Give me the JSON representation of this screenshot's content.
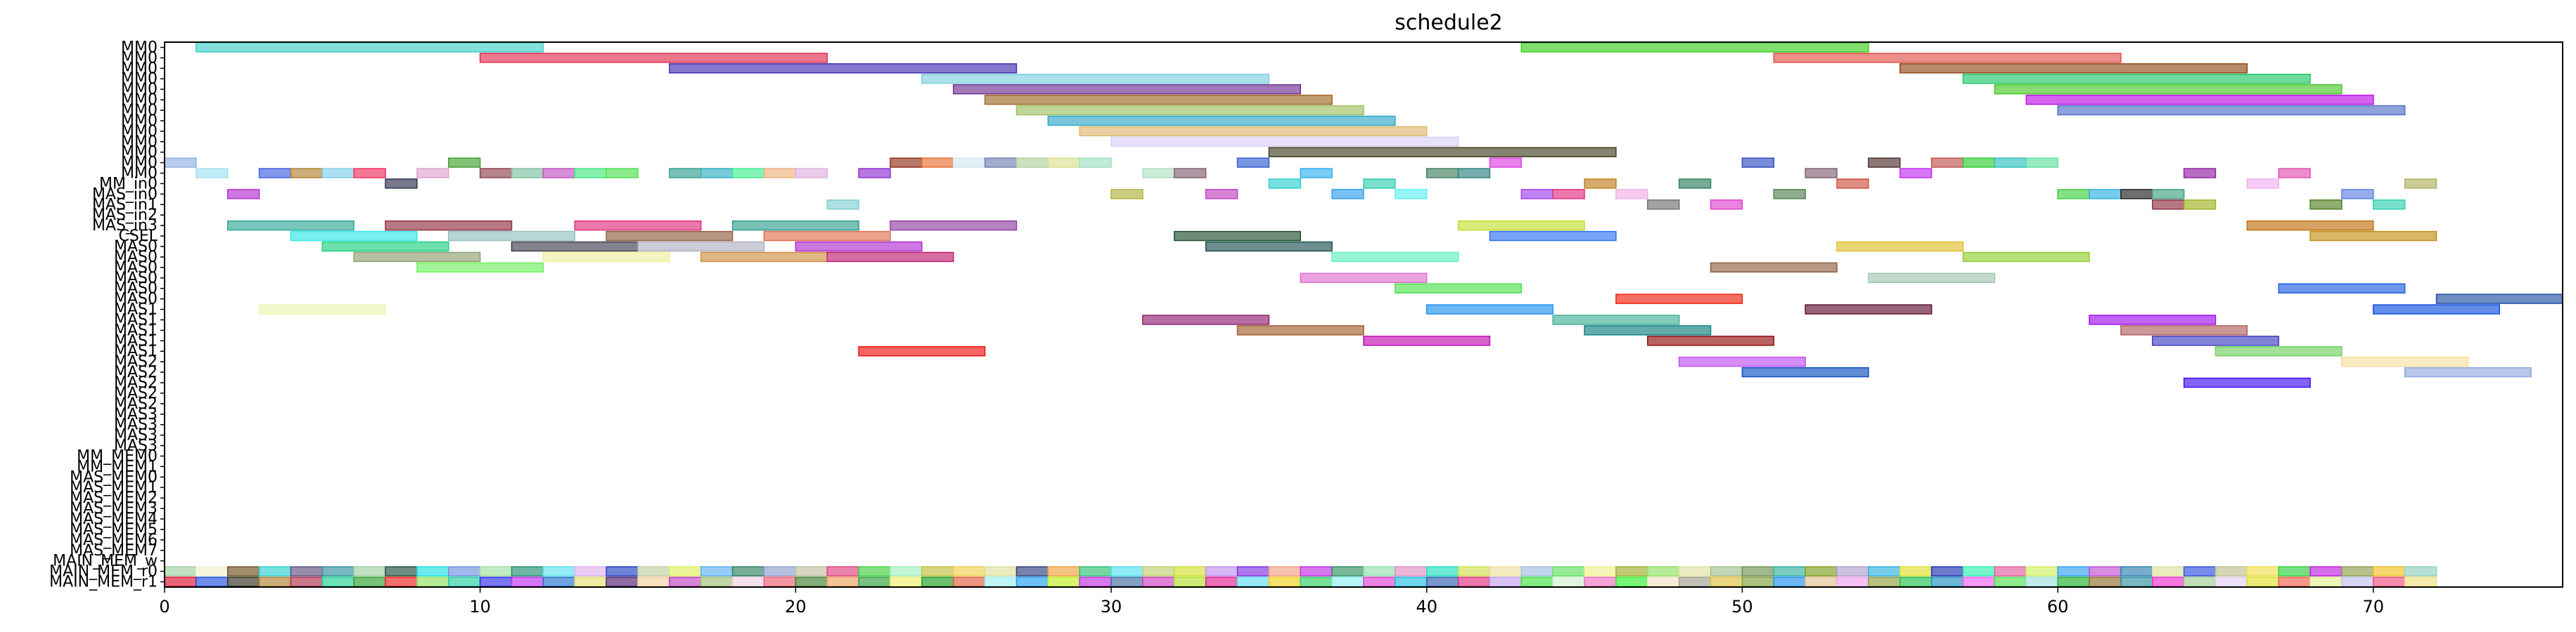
{
  "chart_data": {
    "type": "gantt",
    "title": "schedule2",
    "xlabel": "",
    "ylabel": "",
    "xlim": [
      0,
      76
    ],
    "xticks": [
      0,
      10,
      20,
      30,
      40,
      50,
      60,
      70
    ],
    "grid": false,
    "legend": "none",
    "resources": [
      "MM0",
      "MM0",
      "MM0",
      "MM0",
      "MM0",
      "MM0",
      "MM0",
      "MM0",
      "MM0",
      "MM0",
      "MM0",
      "MM0",
      "MM0",
      "MM_in0",
      "MAS_in0",
      "MAS_in1",
      "MAS_in2",
      "MAS_in3",
      "CSEL",
      "MAS0",
      "MAS0",
      "MAS0",
      "MAS0",
      "MAS0",
      "MAS0",
      "MAS1",
      "MAS1",
      "MAS1",
      "MAS1",
      "MAS1",
      "MAS2",
      "MAS2",
      "MAS2",
      "MAS2",
      "MAS2",
      "MAS3",
      "MAS3",
      "MAS3",
      "MAS3",
      "MM_MEM0",
      "MM_MEM1",
      "MAS_MEM0",
      "MAS_MEM1",
      "MAS_MEM2",
      "MAS_MEM3",
      "MAS_MEM4",
      "MAS_MEM5",
      "MAS_MEM6",
      "MAS_MEM7",
      "MAIN_MEM_w",
      "MAIN_MEM_r0",
      "MAIN_MEM_r1"
    ],
    "tasks": [
      {
        "row": 0,
        "start": 1,
        "end": 12,
        "color": "#40d0c8"
      },
      {
        "row": 0,
        "start": 43,
        "end": 54,
        "color": "#3cd020"
      },
      {
        "row": 1,
        "start": 10,
        "end": 21,
        "color": "#e03050"
      },
      {
        "row": 1,
        "start": 51,
        "end": 62,
        "color": "#e05048"
      },
      {
        "row": 2,
        "start": 16,
        "end": 27,
        "color": "#4030b0"
      },
      {
        "row": 2,
        "start": 55,
        "end": 66,
        "color": "#904818"
      },
      {
        "row": 3,
        "start": 24,
        "end": 35,
        "color": "#80d0e0"
      },
      {
        "row": 3,
        "start": 57,
        "end": 68,
        "color": "#20c868"
      },
      {
        "row": 4,
        "start": 25,
        "end": 36,
        "color": "#703090"
      },
      {
        "row": 4,
        "start": 58,
        "end": 69,
        "color": "#48c828"
      },
      {
        "row": 5,
        "start": 26,
        "end": 37,
        "color": "#a06828"
      },
      {
        "row": 5,
        "start": 59,
        "end": 70,
        "color": "#c010e8"
      },
      {
        "row": 6,
        "start": 27,
        "end": 38,
        "color": "#a0c060"
      },
      {
        "row": 6,
        "start": 60,
        "end": 71,
        "color": "#5070c8"
      },
      {
        "row": 7,
        "start": 28,
        "end": 39,
        "color": "#30a8c8"
      },
      {
        "row": 8,
        "start": 29,
        "end": 40,
        "color": "#e0b870"
      },
      {
        "row": 9,
        "start": 30,
        "end": 41,
        "color": "#d8d0f8"
      },
      {
        "row": 10,
        "start": 35,
        "end": 46,
        "color": "#404020"
      },
      {
        "row": 11,
        "start": 0,
        "end": 1,
        "color": "#90b0e0"
      },
      {
        "row": 11,
        "start": 9,
        "end": 10,
        "color": "#40a030"
      },
      {
        "row": 11,
        "start": 23,
        "end": 24,
        "color": "#903018"
      },
      {
        "row": 11,
        "start": 24,
        "end": 25,
        "color": "#e87030"
      },
      {
        "row": 11,
        "start": 25,
        "end": 26,
        "color": "#d0e8f0"
      },
      {
        "row": 11,
        "start": 26,
        "end": 27,
        "color": "#7080b0"
      },
      {
        "row": 11,
        "start": 27,
        "end": 28,
        "color": "#b0d0a0"
      },
      {
        "row": 11,
        "start": 28,
        "end": 29,
        "color": "#d8e090"
      },
      {
        "row": 11,
        "start": 29,
        "end": 30,
        "color": "#a0e0c0"
      },
      {
        "row": 11,
        "start": 34,
        "end": 35,
        "color": "#3060d0"
      },
      {
        "row": 11,
        "start": 42,
        "end": 43,
        "color": "#e040e0"
      },
      {
        "row": 11,
        "start": 50,
        "end": 51,
        "color": "#3050c0"
      },
      {
        "row": 11,
        "start": 54,
        "end": 55,
        "color": "#503030"
      },
      {
        "row": 11,
        "start": 56,
        "end": 57,
        "color": "#c05050"
      },
      {
        "row": 11,
        "start": 57,
        "end": 58,
        "color": "#30d030"
      },
      {
        "row": 11,
        "start": 58,
        "end": 59,
        "color": "#30c0c0"
      },
      {
        "row": 11,
        "start": 59,
        "end": 60,
        "color": "#60e0a0"
      },
      {
        "row": 12,
        "start": 1,
        "end": 2,
        "color": "#a0e0f0"
      },
      {
        "row": 12,
        "start": 3,
        "end": 4,
        "color": "#4060e0"
      },
      {
        "row": 12,
        "start": 4,
        "end": 5,
        "color": "#b08030"
      },
      {
        "row": 12,
        "start": 5,
        "end": 6,
        "color": "#80d0e8"
      },
      {
        "row": 12,
        "start": 6,
        "end": 7,
        "color": "#f03060"
      },
      {
        "row": 12,
        "start": 8,
        "end": 9,
        "color": "#e0a0d0"
      },
      {
        "row": 12,
        "start": 10,
        "end": 11,
        "color": "#904050"
      },
      {
        "row": 12,
        "start": 11,
        "end": 12,
        "color": "#80c0a0"
      },
      {
        "row": 12,
        "start": 12,
        "end": 13,
        "color": "#c050c0"
      },
      {
        "row": 12,
        "start": 13,
        "end": 14,
        "color": "#40e880"
      },
      {
        "row": 12,
        "start": 14,
        "end": 15,
        "color": "#50e050"
      },
      {
        "row": 12,
        "start": 16,
        "end": 17,
        "color": "#30a090"
      },
      {
        "row": 12,
        "start": 17,
        "end": 18,
        "color": "#30b0c0"
      },
      {
        "row": 12,
        "start": 18,
        "end": 19,
        "color": "#40f090"
      },
      {
        "row": 12,
        "start": 19,
        "end": 20,
        "color": "#f0b080"
      },
      {
        "row": 12,
        "start": 20,
        "end": 21,
        "color": "#e0b0e0"
      },
      {
        "row": 12,
        "start": 22,
        "end": 23,
        "color": "#9030d0"
      },
      {
        "row": 12,
        "start": 31,
        "end": 32,
        "color": "#b0e0c0"
      },
      {
        "row": 12,
        "start": 32,
        "end": 33,
        "color": "#806070"
      },
      {
        "row": 12,
        "start": 36,
        "end": 37,
        "color": "#30b0f0"
      },
      {
        "row": 12,
        "start": 40,
        "end": 41,
        "color": "#408060"
      },
      {
        "row": 12,
        "start": 41,
        "end": 42,
        "color": "#308080"
      },
      {
        "row": 12,
        "start": 52,
        "end": 53,
        "color": "#806070"
      },
      {
        "row": 12,
        "start": 55,
        "end": 56,
        "color": "#c030f0"
      },
      {
        "row": 12,
        "start": 64,
        "end": 65,
        "color": "#9020a0"
      },
      {
        "row": 12,
        "start": 67,
        "end": 68,
        "color": "#e050b0"
      },
      {
        "row": 13,
        "start": 7,
        "end": 8,
        "color": "#303050"
      },
      {
        "row": 13,
        "start": 35,
        "end": 36,
        "color": "#30d0d0"
      },
      {
        "row": 13,
        "start": 38,
        "end": 39,
        "color": "#30d0b0"
      },
      {
        "row": 13,
        "start": 45,
        "end": 46,
        "color": "#c08020"
      },
      {
        "row": 13,
        "start": 48,
        "end": 49,
        "color": "#308060"
      },
      {
        "row": 13,
        "start": 53,
        "end": 54,
        "color": "#d05040"
      },
      {
        "row": 13,
        "start": 66,
        "end": 67,
        "color": "#f0b0f0"
      },
      {
        "row": 13,
        "start": 71,
        "end": 72,
        "color": "#b0b060"
      },
      {
        "row": 14,
        "start": 2,
        "end": 3,
        "color": "#b030d0"
      },
      {
        "row": 14,
        "start": 30,
        "end": 31,
        "color": "#b0b040"
      },
      {
        "row": 14,
        "start": 33,
        "end": 34,
        "color": "#c040c0"
      },
      {
        "row": 14,
        "start": 37,
        "end": 38,
        "color": "#30a0f0"
      },
      {
        "row": 14,
        "start": 39,
        "end": 40,
        "color": "#60f0f0"
      },
      {
        "row": 14,
        "start": 43,
        "end": 44,
        "color": "#a040f0"
      },
      {
        "row": 14,
        "start": 44,
        "end": 45,
        "color": "#e03080"
      },
      {
        "row": 14,
        "start": 46,
        "end": 47,
        "color": "#f0b0e8"
      },
      {
        "row": 14,
        "start": 51,
        "end": 52,
        "color": "#508050"
      },
      {
        "row": 14,
        "start": 60,
        "end": 61,
        "color": "#40d040"
      },
      {
        "row": 14,
        "start": 61,
        "end": 62,
        "color": "#30b0e0"
      },
      {
        "row": 14,
        "start": 62,
        "end": 63,
        "color": "#202020"
      },
      {
        "row": 14,
        "start": 63,
        "end": 64,
        "color": "#40a080"
      },
      {
        "row": 14,
        "start": 69,
        "end": 70,
        "color": "#6080e0"
      },
      {
        "row": 15,
        "start": 21,
        "end": 22,
        "color": "#80d0d0"
      },
      {
        "row": 15,
        "start": 47,
        "end": 48,
        "color": "#707070"
      },
      {
        "row": 15,
        "start": 49,
        "end": 50,
        "color": "#e040d0"
      },
      {
        "row": 15,
        "start": 63,
        "end": 64,
        "color": "#903040"
      },
      {
        "row": 15,
        "start": 64,
        "end": 65,
        "color": "#a0b020"
      },
      {
        "row": 15,
        "start": 68,
        "end": 69,
        "color": "#508020"
      },
      {
        "row": 15,
        "start": 70,
        "end": 71,
        "color": "#30d0b0"
      },
      {
        "row": 17,
        "start": 2,
        "end": 6,
        "color": "#30a898"
      },
      {
        "row": 17,
        "start": 7,
        "end": 11,
        "color": "#903040"
      },
      {
        "row": 17,
        "start": 13,
        "end": 17,
        "color": "#e03080"
      },
      {
        "row": 17,
        "start": 18,
        "end": 22,
        "color": "#30a090"
      },
      {
        "row": 17,
        "start": 23,
        "end": 27,
        "color": "#9040a0"
      },
      {
        "row": 17,
        "start": 41,
        "end": 45,
        "color": "#c0e030"
      },
      {
        "row": 17,
        "start": 66,
        "end": 70,
        "color": "#c07010"
      },
      {
        "row": 18,
        "start": 4,
        "end": 8,
        "color": "#30e8e8"
      },
      {
        "row": 18,
        "start": 9,
        "end": 13,
        "color": "#90c0c0"
      },
      {
        "row": 18,
        "start": 14,
        "end": 18,
        "color": "#906040"
      },
      {
        "row": 18,
        "start": 19,
        "end": 23,
        "color": "#e07050"
      },
      {
        "row": 18,
        "start": 32,
        "end": 36,
        "color": "#205030"
      },
      {
        "row": 18,
        "start": 42,
        "end": 46,
        "color": "#3070f0"
      },
      {
        "row": 18,
        "start": 68,
        "end": 72,
        "color": "#c09010"
      },
      {
        "row": 19,
        "start": 5,
        "end": 9,
        "color": "#20d080"
      },
      {
        "row": 19,
        "start": 11,
        "end": 15,
        "color": "#404050"
      },
      {
        "row": 19,
        "start": 15,
        "end": 19,
        "color": "#b0b0c0"
      },
      {
        "row": 19,
        "start": 20,
        "end": 24,
        "color": "#b030d0"
      },
      {
        "row": 19,
        "start": 33,
        "end": 37,
        "color": "#205050"
      },
      {
        "row": 19,
        "start": 53,
        "end": 57,
        "color": "#e0c030"
      },
      {
        "row": 20,
        "start": 6,
        "end": 10,
        "color": "#90a070"
      },
      {
        "row": 20,
        "start": 12,
        "end": 16,
        "color": "#f0f0a0"
      },
      {
        "row": 20,
        "start": 17,
        "end": 21,
        "color": "#d09040"
      },
      {
        "row": 20,
        "start": 21,
        "end": 25,
        "color": "#c02070"
      },
      {
        "row": 20,
        "start": 37,
        "end": 41,
        "color": "#60f0c0"
      },
      {
        "row": 20,
        "start": 57,
        "end": 61,
        "color": "#90d030"
      },
      {
        "row": 21,
        "start": 8,
        "end": 12,
        "color": "#70f060"
      },
      {
        "row": 21,
        "start": 49,
        "end": 53,
        "color": "#906040"
      },
      {
        "row": 22,
        "start": 36,
        "end": 40,
        "color": "#e070d0"
      },
      {
        "row": 22,
        "start": 54,
        "end": 58,
        "color": "#a0c8b0"
      },
      {
        "row": 23,
        "start": 39,
        "end": 43,
        "color": "#50e050"
      },
      {
        "row": 23,
        "start": 67,
        "end": 71,
        "color": "#2060e0"
      },
      {
        "row": 24,
        "start": 46,
        "end": 50,
        "color": "#f02010"
      },
      {
        "row": 24,
        "start": 72,
        "end": 76,
        "color": "#2050a0"
      },
      {
        "row": 25,
        "start": 3,
        "end": 7,
        "color": "#e8f8b0"
      },
      {
        "row": 25,
        "start": 40,
        "end": 44,
        "color": "#2090f0"
      },
      {
        "row": 25,
        "start": 52,
        "end": 56,
        "color": "#601030"
      },
      {
        "row": 25,
        "start": 70,
        "end": 74,
        "color": "#1050e0"
      },
      {
        "row": 26,
        "start": 31,
        "end": 35,
        "color": "#902070"
      },
      {
        "row": 26,
        "start": 44,
        "end": 48,
        "color": "#40b098"
      },
      {
        "row": 26,
        "start": 61,
        "end": 65,
        "color": "#a010f0"
      },
      {
        "row": 27,
        "start": 34,
        "end": 38,
        "color": "#a06030"
      },
      {
        "row": 27,
        "start": 45,
        "end": 49,
        "color": "#108080"
      },
      {
        "row": 27,
        "start": 62,
        "end": 66,
        "color": "#b06060"
      },
      {
        "row": 28,
        "start": 38,
        "end": 42,
        "color": "#c010b0"
      },
      {
        "row": 28,
        "start": 47,
        "end": 51,
        "color": "#901010"
      },
      {
        "row": 28,
        "start": 63,
        "end": 67,
        "color": "#4040c0"
      },
      {
        "row": 29,
        "start": 22,
        "end": 26,
        "color": "#f01010"
      },
      {
        "row": 29,
        "start": 65,
        "end": 69,
        "color": "#70d060"
      },
      {
        "row": 30,
        "start": 48,
        "end": 52,
        "color": "#c050f0"
      },
      {
        "row": 30,
        "start": 69,
        "end": 73,
        "color": "#f8e0a0"
      },
      {
        "row": 31,
        "start": 50,
        "end": 54,
        "color": "#1050c0"
      },
      {
        "row": 31,
        "start": 71,
        "end": 75,
        "color": "#90a8e0"
      },
      {
        "row": 32,
        "start": 64,
        "end": 68,
        "color": "#4010f0"
      }
    ],
    "memory_w": {
      "row": 50,
      "start": 0,
      "colors": [
        "#a0d0a0",
        "#f0f0d0",
        "#705020",
        "#30d0d0",
        "#605080",
        "#3090a0",
        "#a0d0a0",
        "#205040",
        "#20e0e0",
        "#7090e0",
        "#a0e0a0",
        "#209070",
        "#60e0f0",
        "#e0b0f0",
        "#2040c0",
        "#c0d0a0",
        "#e0f060",
        "#60b0f0",
        "#308060",
        "#90a0d0",
        "#c0c0a0",
        "#e04080",
        "#40d040",
        "#a0f0c0",
        "#c0c040",
        "#f0d050",
        "#e0e0a0",
        "#304080",
        "#f0a040",
        "#30c070",
        "#50e0f0",
        "#c0d070",
        "#d0e030",
        "#c090f0",
        "#8030e0",
        "#f0a080",
        "#c030e0",
        "#309060",
        "#90e0b0",
        "#e090c0",
        "#20e0c0",
        "#d0e050",
        "#f0e0a0",
        "#a0c0e0",
        "#60e060",
        "#f0f090",
        "#a0b030",
        "#90e060",
        "#e0e0a0",
        "#a0c090",
        "#709050",
        "#30b0a0",
        "#80a020",
        "#b0a0d0",
        "#30b0e0",
        "#e0e030",
        "#2030b0",
        "#30f0b0",
        "#e060a0",
        "#d0f060",
        "#30a0f0",
        "#c050d0",
        "#3080b0",
        "#e0e0a0",
        "#3050e0",
        "#c0c090",
        "#f0e050",
        "#30d040",
        "#c020e0",
        "#90a050",
        "#f0c020",
        "#90d0c0"
      ]
    },
    "memory_r": {
      "row": 51,
      "start": 0,
      "colors": [
        "#e01030",
        "#2050e0",
        "#303020",
        "#b08030",
        "#b03050",
        "#20d090",
        "#30a030",
        "#f02020",
        "#90e060",
        "#20d0a0",
        "#3030f0",
        "#c030f0",
        "#2070d0",
        "#e0e070",
        "#502070",
        "#f0d0a0",
        "#c040c0",
        "#a0c070",
        "#f0d0e0",
        "#f06070",
        "#408030",
        "#f0a060",
        "#30a040",
        "#f0f070",
        "#20a020",
        "#e06040",
        "#a0f0f0",
        "#20a0f0",
        "#c0f020",
        "#c030e0",
        "#4070a0",
        "#d040c0",
        "#b0e030",
        "#e02090",
        "#60e0f0",
        "#f0d020",
        "#30d060",
        "#90f0f0",
        "#e040d0",
        "#20c0e0",
        "#3060b0",
        "#e03080",
        "#c0a0f0",
        "#40e040",
        "#d0f0d0",
        "#f070c0",
        "#30f030",
        "#f0e0c0",
        "#a0a090",
        "#e0c040",
        "#80a040",
        "#2090f0",
        "#e0c090",
        "#f0a0f0",
        "#90a040",
        "#20c050",
        "#2090c0",
        "#f060f0",
        "#50e050",
        "#a0e0e0",
        "#20b030",
        "#907030",
        "#3090a0",
        "#f030d0",
        "#a0d090",
        "#e0d0f0",
        "#e0e030",
        "#f06050",
        "#e0f090",
        "#c0c0f0",
        "#f05080",
        "#f0e080"
      ]
    }
  }
}
